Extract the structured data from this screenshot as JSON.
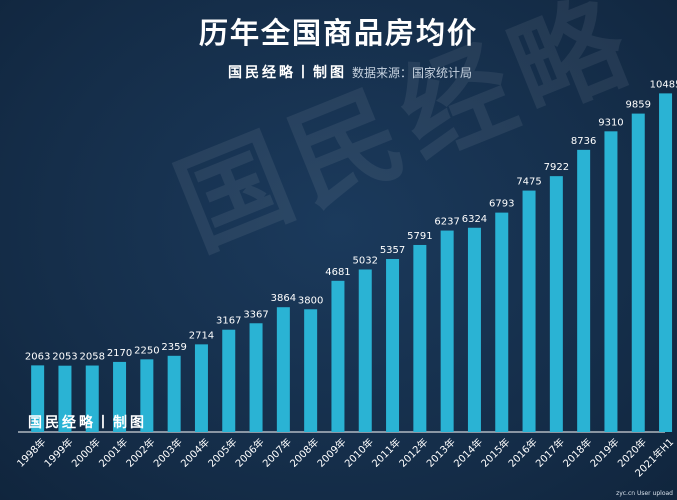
{
  "title": "历年全国商品房均价",
  "brand": "国民经略丨制图",
  "source": "数据来源：国家统计局",
  "watermark": "国民经略",
  "corner_note": "zyc.cn User upload",
  "colors": {
    "background": "#142c47",
    "bar": "#2ab3d4",
    "text": "#ffffff"
  },
  "chart_data": {
    "type": "bar",
    "title": "历年全国商品房均价",
    "xlabel": "",
    "ylabel": "",
    "categories": [
      "1998年",
      "1999年",
      "2000年",
      "2001年",
      "2002年",
      "2003年",
      "2004年",
      "2005年",
      "2006年",
      "2007年",
      "2008年",
      "2009年",
      "2010年",
      "2011年",
      "2012年",
      "2013年",
      "2014年",
      "2015年",
      "2016年",
      "2017年",
      "2018年",
      "2019年",
      "2020年",
      "2021年H1"
    ],
    "values": [
      2063,
      2053,
      2058,
      2170,
      2250,
      2359,
      2714,
      3167,
      3367,
      3864,
      3800,
      4681,
      5032,
      5357,
      5791,
      6237,
      6324,
      6793,
      7475,
      7922,
      8736,
      9310,
      9859,
      10485
    ],
    "ylim": [
      0,
      11000
    ],
    "grid": false,
    "legend": "none"
  }
}
